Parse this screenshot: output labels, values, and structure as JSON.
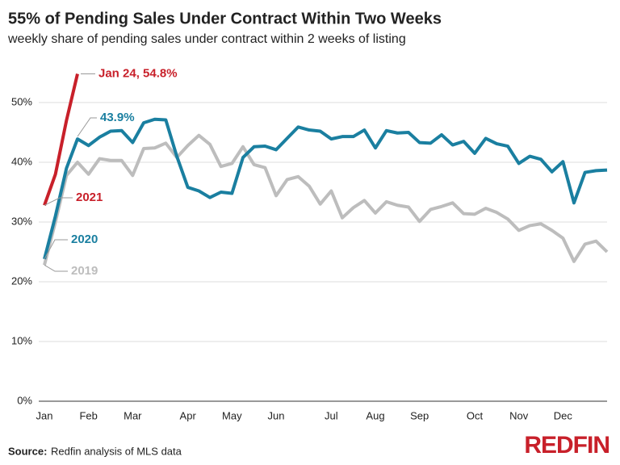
{
  "chart_data": {
    "type": "line",
    "title": "55% of Pending Sales Under Contract Within Two Weeks",
    "subtitle": "weekly share of pending sales under contract within 2 weeks of listing",
    "categories": [
      "Jan",
      null,
      null,
      null,
      "Feb",
      null,
      null,
      null,
      "Mar",
      null,
      null,
      null,
      null,
      "Apr",
      null,
      null,
      null,
      "May",
      null,
      null,
      null,
      "Jun",
      null,
      null,
      null,
      null,
      "Jul",
      null,
      null,
      null,
      "Aug",
      null,
      null,
      null,
      "Sep",
      null,
      null,
      null,
      null,
      "Oct",
      null,
      null,
      null,
      "Nov",
      null,
      null,
      null,
      "Dec",
      null,
      null,
      null,
      null
    ],
    "series": [
      {
        "name": "2019",
        "color": "#bdbdbd",
        "values": [
          22.8,
          30,
          37.8,
          40,
          38,
          40.6,
          40.3,
          40.3,
          37.8,
          42.3,
          42.4,
          43.2,
          40.8,
          42.8,
          44.5,
          43,
          39.3,
          39.8,
          42.6,
          39.6,
          39.1,
          34.4,
          37.1,
          37.6,
          36,
          33,
          35.2,
          30.7,
          32.4,
          33.6,
          31.5,
          33.4,
          32.8,
          32.5,
          30.1,
          32.1,
          32.6,
          33.2,
          31.4,
          31.3,
          32.3,
          31.6,
          30.5,
          28.6,
          29.4,
          29.7,
          28.6,
          27.3,
          23.4,
          26.3,
          26.8,
          25
        ]
      },
      {
        "name": "2020",
        "color": "#1a7fa0",
        "values": [
          23.8,
          31,
          39,
          43.9,
          42.8,
          44.2,
          45.2,
          45.3,
          43.3,
          46.6,
          47.2,
          47.1,
          41,
          35.8,
          35.2,
          34.1,
          35,
          34.8,
          40.8,
          42.6,
          42.7,
          42.1,
          44,
          45.9,
          45.4,
          45.2,
          43.9,
          44.3,
          44.3,
          45.4,
          42.4,
          45.3,
          44.9,
          45,
          43.3,
          43.2,
          44.6,
          42.9,
          43.5,
          41.5,
          44,
          43.1,
          42.7,
          39.8,
          41,
          40.5,
          38.4,
          40.1,
          33.2,
          38.3,
          38.6,
          38.7
        ]
      },
      {
        "name": "2021",
        "color": "#c8202a",
        "values": [
          32.8,
          38,
          47,
          54.8,
          null,
          null,
          null,
          null,
          null,
          null,
          null,
          null,
          null,
          null,
          null,
          null,
          null,
          null,
          null,
          null,
          null,
          null,
          null,
          null,
          null,
          null,
          null,
          null,
          null,
          null,
          null,
          null,
          null,
          null,
          null,
          null,
          null,
          null,
          null,
          null,
          null,
          null,
          null,
          null,
          null,
          null,
          null,
          null,
          null,
          null,
          null,
          null
        ]
      }
    ],
    "annotations": [
      "Jan 24, 54.8%",
      "43.9%"
    ],
    "ylim": [
      0,
      55
    ],
    "yticks": [
      {
        "value": 0,
        "label": "0%"
      },
      {
        "value": 10,
        "label": "10%"
      },
      {
        "value": 20,
        "label": "20%"
      },
      {
        "value": 30,
        "label": "30%"
      },
      {
        "value": 40,
        "label": "40%"
      },
      {
        "value": 50,
        "label": "50%"
      }
    ],
    "grid": true
  },
  "source_label": "Source:",
  "source": "Redfin analysis of MLS data",
  "logo": "REDFIN"
}
